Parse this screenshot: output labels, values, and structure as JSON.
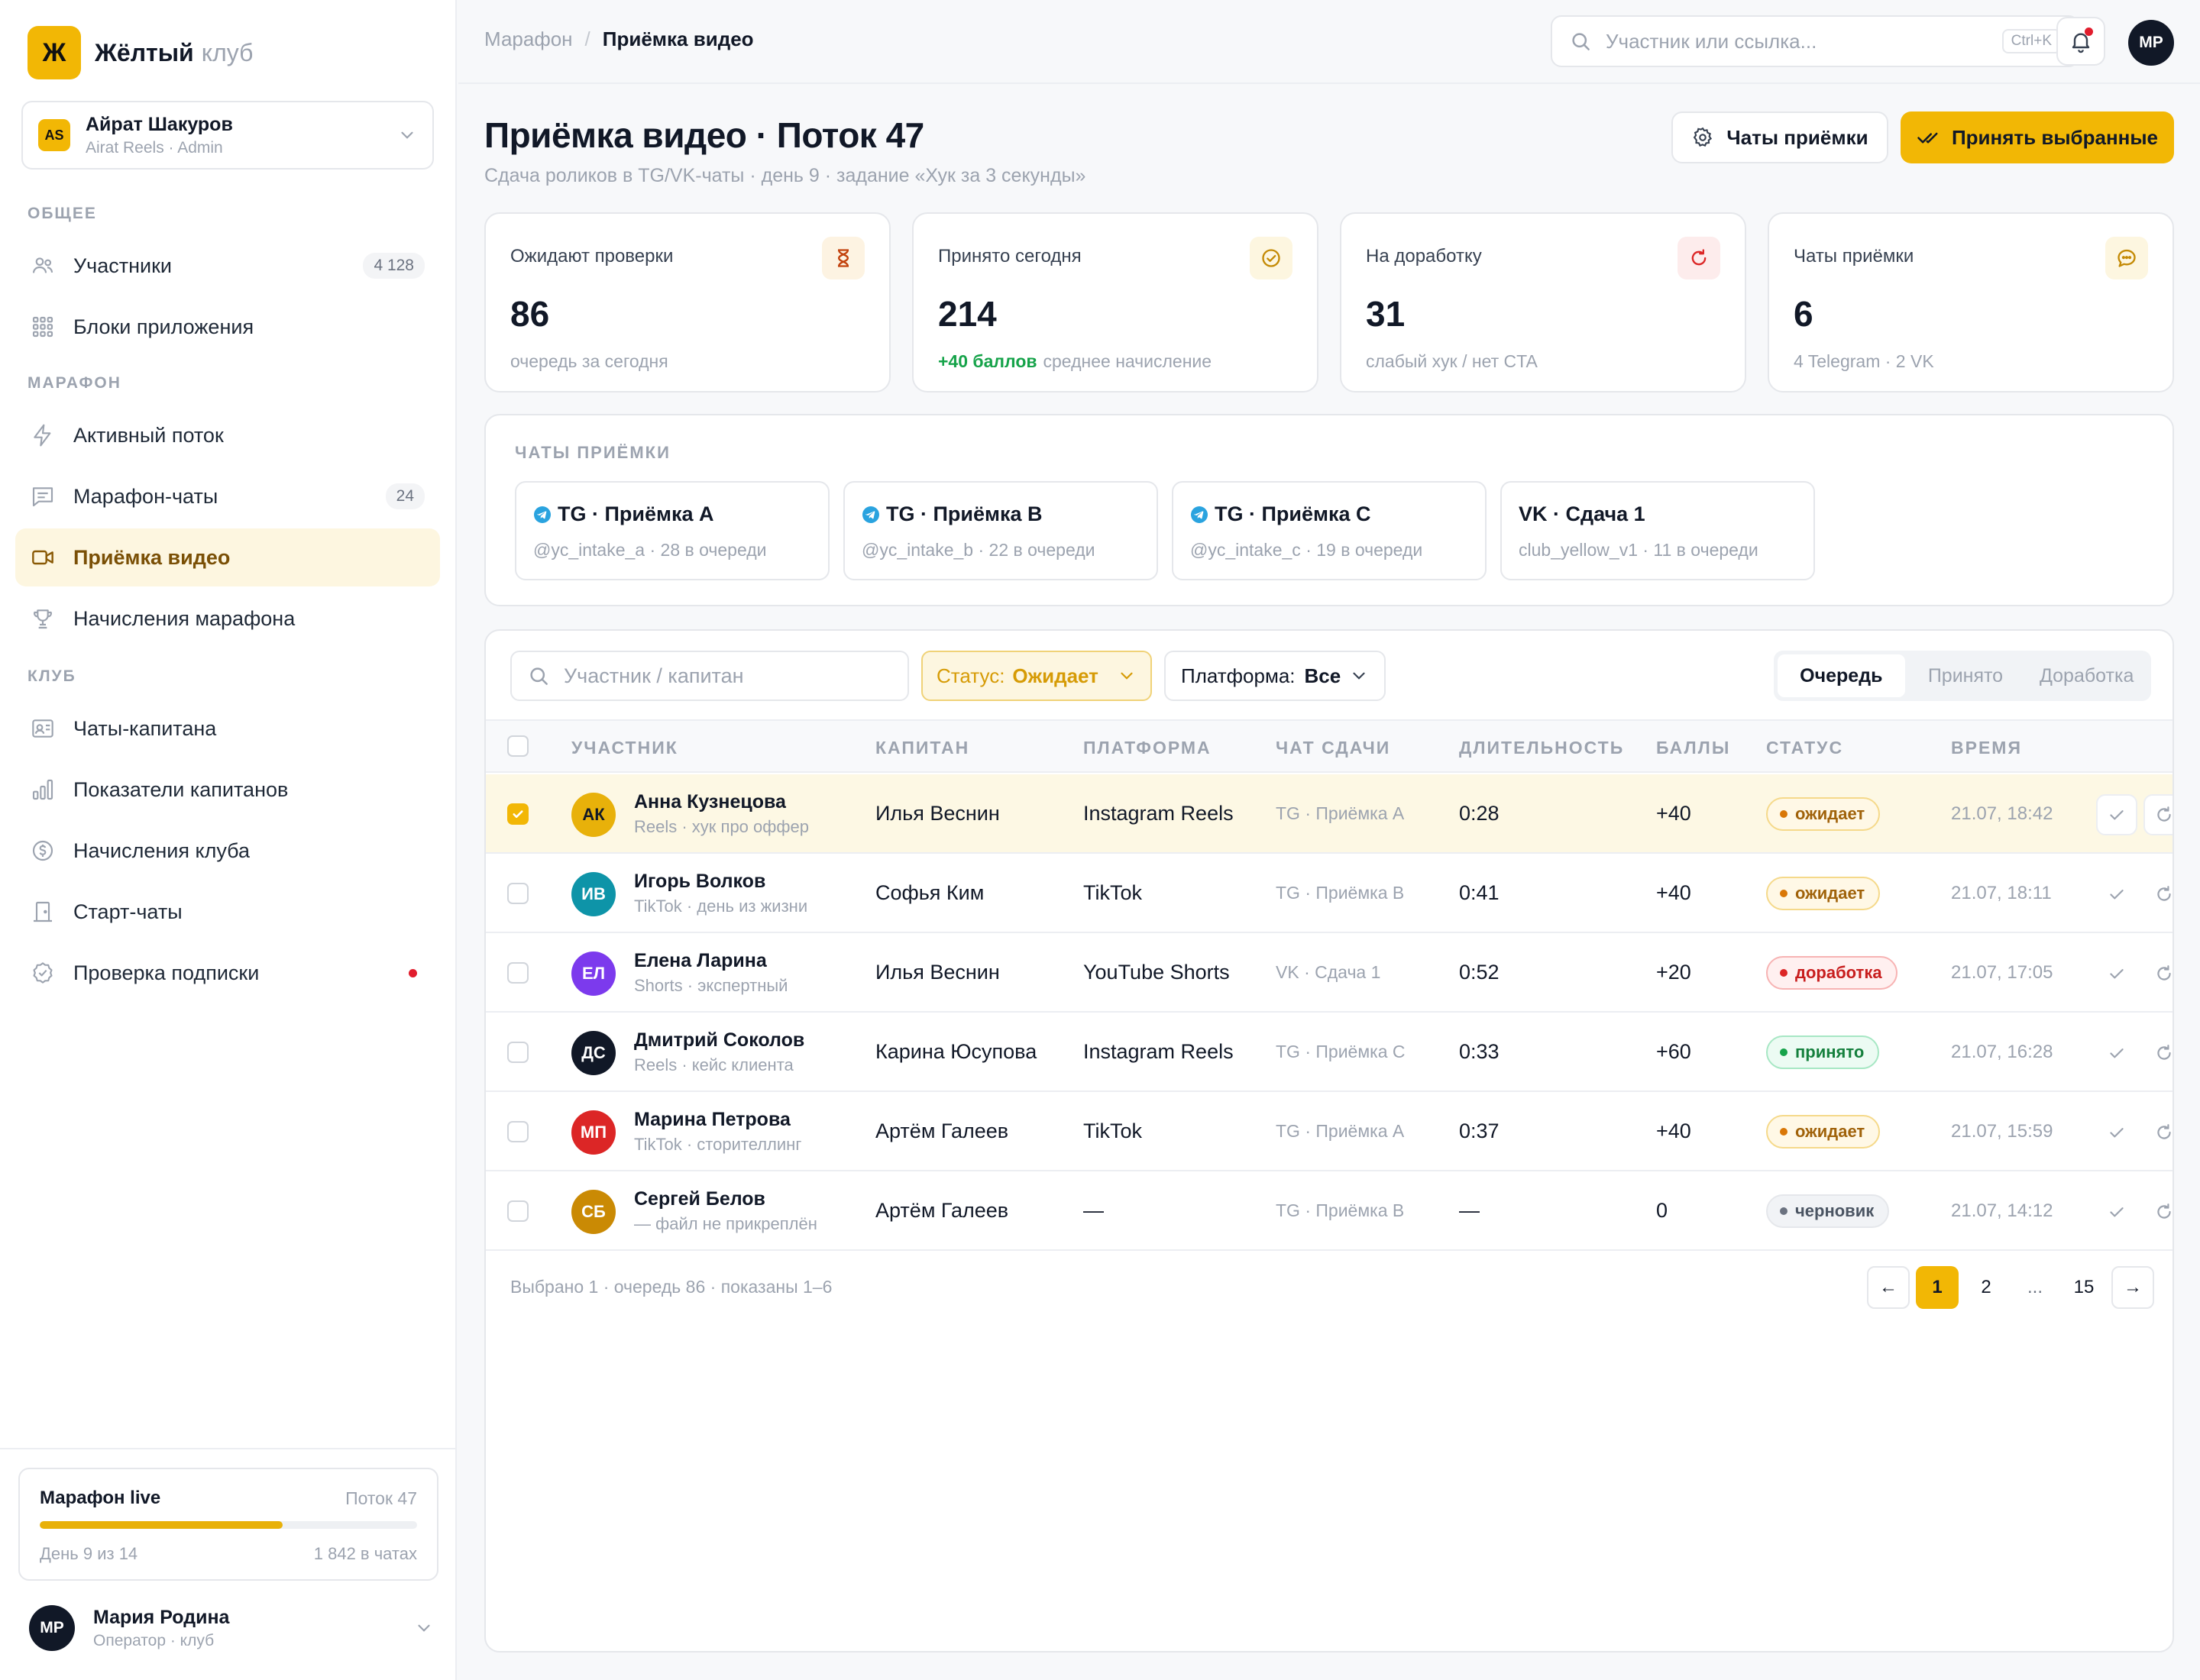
{
  "brand": {
    "logo": "Ж",
    "name": "Жёлтый",
    "sub": "клуб"
  },
  "account": {
    "initials": "AS",
    "name": "Айрат Шакуров",
    "role": "Airat Reels · Admin"
  },
  "nav": {
    "sections": {
      "general": "ОБЩЕЕ",
      "marathon": "МАРАФОН",
      "club": "КЛУБ"
    },
    "items": [
      {
        "label": "Участники",
        "badge": "4 128",
        "icon": "users-icon"
      },
      {
        "label": "Блоки приложения",
        "icon": "grid-icon"
      },
      {
        "label": "Активный поток",
        "icon": "lightning-icon"
      },
      {
        "label": "Марафон-чаты",
        "badge": "24",
        "icon": "message-icon"
      },
      {
        "label": "Приёмка видео",
        "icon": "video-icon",
        "active": true
      },
      {
        "label": "Начисления марафона",
        "icon": "trophy-icon"
      },
      {
        "label": "Чаты-капитана",
        "icon": "id-card-icon"
      },
      {
        "label": "Показатели капитанов",
        "icon": "bar-chart-icon"
      },
      {
        "label": "Начисления клуба",
        "icon": "coin-icon"
      },
      {
        "label": "Старт-чаты",
        "icon": "door-icon"
      },
      {
        "label": "Проверка подписки",
        "icon": "check-badge-icon",
        "alert": true
      }
    ]
  },
  "marathon_card": {
    "title": "Марафон live",
    "stream": "Поток 47",
    "progress": 0.643,
    "day": "День 9 из 14",
    "in_chats": "1 842 в чатах"
  },
  "operator": {
    "initials": "МР",
    "name": "Мария Родина",
    "role": "Оператор · клуб"
  },
  "topbar": {
    "breadcrumb_parent": "Марафон",
    "breadcrumb_sep": "/",
    "breadcrumb_current": "Приёмка видео",
    "search_placeholder": "Участник или ссылка...",
    "shortcut": "Ctrl+K",
    "avatar": "МР"
  },
  "header": {
    "title": "Приёмка видео · Поток 47",
    "subtitle": "Сдача роликов в TG/VK-чаты · день 9 · задание «Хук за 3 секунды»",
    "btn_chats": "Чаты приёмки",
    "btn_accept": "Принять выбранные"
  },
  "kpis": [
    {
      "label": "Ожидают проверки",
      "value": "86",
      "note": "очередь за сегодня",
      "icon": "hourglass-icon",
      "color": "#d97706",
      "bg": "#fdf3e2"
    },
    {
      "label": "Принято сегодня",
      "value": "214",
      "accent": "+40 баллов",
      "note": "среднее начисление",
      "icon": "check-circle-icon",
      "color": "#d69b06",
      "bg": "#fdf6e0"
    },
    {
      "label": "На доработку",
      "value": "31",
      "note": "слабый хук / нет CTA",
      "icon": "refresh-icon",
      "color": "#dc2626",
      "bg": "#fdecec"
    },
    {
      "label": "Чаты приёмки",
      "value": "6",
      "note": "4 Telegram · 2 VK",
      "icon": "chat-bubble-icon",
      "color": "#d69b06",
      "bg": "#fdf6e0"
    }
  ],
  "chats": {
    "title": "ЧАТЫ ПРИЁМКИ",
    "items": [
      {
        "name": "TG · Приёмка A",
        "meta": "@yc_intake_a · 28 в очереди",
        "platform": "tg"
      },
      {
        "name": "TG · Приёмка B",
        "meta": "@yc_intake_b · 22 в очереди",
        "platform": "tg"
      },
      {
        "name": "TG · Приёмка C",
        "meta": "@yc_intake_c · 19 в очереди",
        "platform": "tg"
      },
      {
        "name": "VK · Сдача 1",
        "meta": "club_yellow_v1 · 11 в очереди",
        "platform": "vk"
      }
    ]
  },
  "filters": {
    "search_placeholder": "Участник / капитан",
    "status_label": "Статус:",
    "status_value": "Ожидает",
    "platform_label": "Платформа:",
    "platform_value": "Все",
    "tabs": [
      "Очередь",
      "Принято",
      "Доработка"
    ],
    "active_tab": 0
  },
  "table": {
    "columns": [
      "УЧАСТНИК",
      "КАПИТАН",
      "ПЛАТФОРМА",
      "ЧАТ СДАЧИ",
      "ДЛИТЕЛЬНОСТЬ",
      "БАЛЛЫ",
      "СТАТУС",
      "ВРЕМЯ"
    ],
    "rows": [
      {
        "initials": "АК",
        "avatar_color": "#e8b10a",
        "avatar_text": "#111827",
        "name": "Анна Кузнецова",
        "sub": "Reels · хук про оффер",
        "captain": "Илья Веснин",
        "platform": "Instagram Reels",
        "chat": "TG · Приёмка A",
        "duration": "0:28",
        "points": "+40",
        "status": "ожидает",
        "status_kind": "wait",
        "time": "21.07, 18:42",
        "selected": true
      },
      {
        "initials": "ИВ",
        "avatar_color": "#0e94a8",
        "avatar_text": "#ffffff",
        "name": "Игорь Волков",
        "sub": "TikTok · день из жизни",
        "captain": "Софья Ким",
        "platform": "TikTok",
        "chat": "TG · Приёмка B",
        "duration": "0:41",
        "points": "+40",
        "status": "ожидает",
        "status_kind": "wait",
        "time": "21.07, 18:11",
        "selected": false
      },
      {
        "initials": "ЕЛ",
        "avatar_color": "#7c3aed",
        "avatar_text": "#ffffff",
        "name": "Елена Ларина",
        "sub": "Shorts · экспертный",
        "captain": "Илья Веснин",
        "platform": "YouTube Shorts",
        "chat": "VK · Сдача 1",
        "duration": "0:52",
        "points": "+20",
        "status": "доработка",
        "status_kind": "rework",
        "time": "21.07, 17:05",
        "selected": false
      },
      {
        "initials": "ДС",
        "avatar_color": "#111827",
        "avatar_text": "#ffffff",
        "name": "Дмитрий Соколов",
        "sub": "Reels · кейс клиента",
        "captain": "Карина Юсупова",
        "platform": "Instagram Reels",
        "chat": "TG · Приёмка C",
        "duration": "0:33",
        "points": "+60",
        "status": "принято",
        "status_kind": "accept",
        "time": "21.07, 16:28",
        "selected": false
      },
      {
        "initials": "МП",
        "avatar_color": "#dc2626",
        "avatar_text": "#ffffff",
        "name": "Марина Петрова",
        "sub": "TikTok · сторителлинг",
        "captain": "Артём Галеев",
        "platform": "TikTok",
        "chat": "TG · Приёмка A",
        "duration": "0:37",
        "points": "+40",
        "status": "ожидает",
        "status_kind": "wait",
        "time": "21.07, 15:59",
        "selected": false
      },
      {
        "initials": "СБ",
        "avatar_color": "#ca8a04",
        "avatar_text": "#ffffff",
        "name": "Сергей Белов",
        "sub": "— файл не прикреплён",
        "captain": "Артём Галеев",
        "platform": "—",
        "chat": "TG · Приёмка B",
        "duration": "—",
        "points": "0",
        "status": "черновик",
        "status_kind": "draft",
        "time": "21.07, 14:12",
        "selected": false
      }
    ],
    "footer": "Выбрано 1 · очередь 86 · показаны 1–6"
  },
  "pagination": {
    "prev": "←",
    "pages": [
      "1",
      "2",
      "...",
      "15"
    ],
    "active": "1",
    "next": "→"
  }
}
